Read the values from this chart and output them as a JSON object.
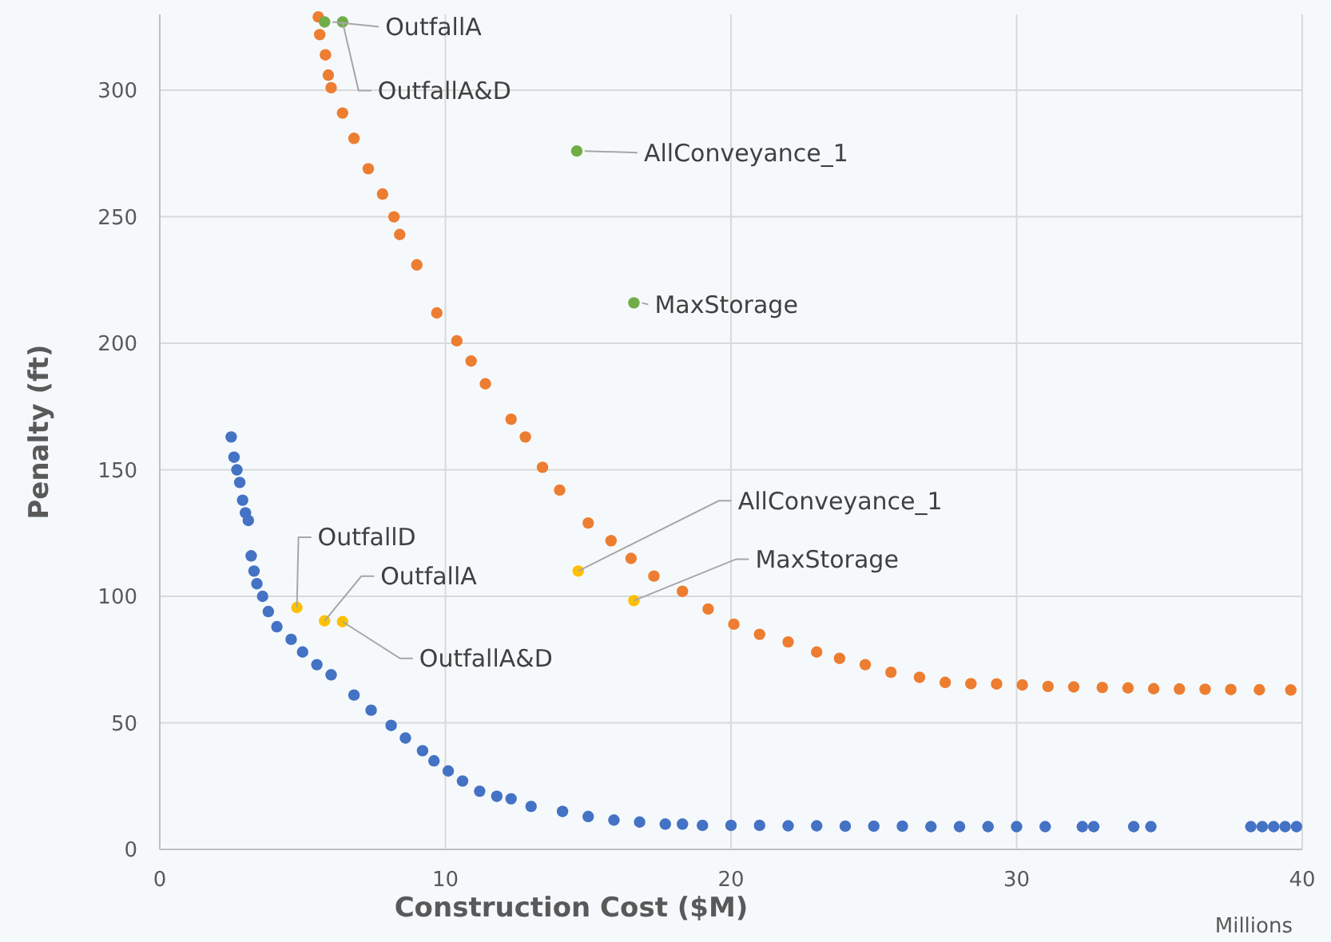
{
  "chart_data": {
    "type": "scatter",
    "xlabel": "Construction Cost ($M)",
    "ylabel": "Penalty (ft)",
    "xlim": [
      0,
      40
    ],
    "ylim": [
      0,
      330
    ],
    "xticks": [
      0,
      10,
      20,
      30,
      40
    ],
    "yticks": [
      0,
      50,
      100,
      150,
      200,
      250,
      300
    ],
    "grid": true,
    "marker": "circle",
    "series": [
      {
        "color": "#4472c4",
        "x": [
          2.5,
          2.6,
          2.7,
          2.8,
          2.9,
          3.0,
          3.1,
          3.2,
          3.3,
          3.4,
          3.6,
          3.8,
          4.1,
          4.6,
          5.0,
          5.5,
          6.0,
          6.8,
          7.4,
          8.1,
          8.6,
          9.2,
          9.6,
          10.1,
          10.6,
          11.2,
          11.8,
          12.3,
          13.0,
          14.1,
          15.0,
          15.9,
          16.8,
          17.7,
          18.3,
          19.0,
          20.0,
          21.0,
          22.0,
          23.0,
          24.0,
          25.0,
          26.0,
          27.0,
          28.0,
          29.0,
          30.0,
          31.0,
          32.3,
          32.7,
          34.1,
          34.7,
          38.2,
          38.6,
          39.0,
          39.4,
          39.8
        ],
        "values": [
          163,
          155,
          150,
          145,
          138,
          133,
          130,
          116,
          110,
          105,
          100,
          94,
          88,
          83,
          78,
          73,
          69,
          61,
          55,
          49,
          44,
          39,
          35,
          31,
          27,
          23,
          21,
          20,
          17,
          15,
          13,
          11.6,
          10.8,
          10,
          10,
          9.5,
          9.5,
          9.5,
          9.3,
          9.3,
          9.2,
          9.2,
          9.2,
          9,
          9,
          9,
          9,
          9,
          9,
          9,
          9,
          9,
          9,
          9,
          9,
          9,
          9
        ]
      },
      {
        "color": "#ed7d31",
        "x": [
          5.55,
          5.6,
          5.8,
          5.9,
          6.0,
          6.4,
          6.8,
          7.3,
          7.8,
          8.2,
          8.4,
          9.0,
          9.7,
          10.4,
          10.9,
          11.4,
          12.3,
          12.8,
          13.4,
          14.0,
          15.0,
          15.8,
          16.5,
          17.3,
          18.3,
          19.2,
          20.1,
          21.0,
          22.0,
          23.0,
          23.8,
          24.7,
          25.6,
          26.6,
          27.5,
          28.4,
          29.3,
          30.2,
          31.1,
          32.0,
          33.0,
          33.9,
          34.8,
          35.7,
          36.6,
          37.5,
          38.5,
          39.6
        ],
        "values": [
          329,
          322,
          314,
          306,
          301,
          291,
          281,
          269,
          259,
          250,
          243,
          231,
          212,
          201,
          193,
          184,
          170,
          163,
          151,
          142,
          129,
          122,
          115,
          108,
          102,
          95,
          89,
          85,
          82,
          78,
          75.5,
          73,
          70,
          68,
          66,
          65.5,
          65.4,
          65,
          64.4,
          64.2,
          64,
          63.8,
          63.5,
          63.4,
          63.3,
          63.2,
          63.1,
          63
        ]
      },
      {
        "color": "#70ad47",
        "x": [
          5.77,
          6.4,
          14.6,
          16.6
        ],
        "values": [
          327,
          327,
          276,
          216
        ]
      },
      {
        "color": "#ffc000",
        "x": [
          4.8,
          5.77,
          6.4,
          14.65,
          16.6
        ],
        "values": [
          95.6,
          90.3,
          90,
          110,
          98.3
        ]
      }
    ],
    "annotations": [
      {
        "text": "OutfallA",
        "x": 5.77,
        "y": 327
      },
      {
        "text": "OutfallA&D",
        "x": 6.4,
        "y": 327
      },
      {
        "text": "AllConveyance_1",
        "x": 14.6,
        "y": 276
      },
      {
        "text": "MaxStorage",
        "x": 16.6,
        "y": 216
      },
      {
        "text": "OutfallD",
        "x": 4.8,
        "y": 95.6
      },
      {
        "text": "OutfallA",
        "x": 5.77,
        "y": 90.3
      },
      {
        "text": "OutfallA&D",
        "x": 6.4,
        "y": 90
      },
      {
        "text": "AllConveyance_1",
        "x": 14.65,
        "y": 110
      },
      {
        "text": "MaxStorage",
        "x": 16.6,
        "y": 98.3
      },
      "Millions"
    ]
  }
}
